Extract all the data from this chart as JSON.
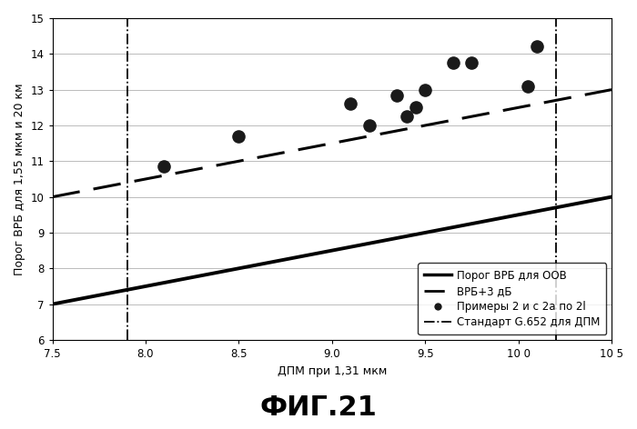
{
  "title": "ФИГ.21",
  "xlabel": "ДПМ при 1,31 мкм",
  "ylabel": "Порог ВРБ для 1,55 мкм и 20 км",
  "xlim": [
    7.5,
    10.5
  ],
  "ylim": [
    6,
    15
  ],
  "xticks": [
    7.5,
    8.0,
    8.5,
    9.0,
    9.5,
    10.0,
    10.5
  ],
  "xtick_labels": [
    "7.5",
    "8.0",
    "8.5",
    "9.0",
    "9.5",
    "10 0",
    "10 5"
  ],
  "yticks": [
    6,
    7,
    8,
    9,
    10,
    11,
    12,
    13,
    14,
    15
  ],
  "solid_line": {
    "x": [
      7.5,
      10.5
    ],
    "y": [
      7.0,
      10.0
    ]
  },
  "dashed_line": {
    "x": [
      7.5,
      10.5
    ],
    "y": [
      10.0,
      13.0
    ]
  },
  "vlines": [
    7.9,
    10.2
  ],
  "scatter_x": [
    8.1,
    8.5,
    9.1,
    9.2,
    9.35,
    9.4,
    9.45,
    9.5,
    9.65,
    9.75,
    10.05,
    10.1
  ],
  "scatter_y": [
    10.85,
    11.7,
    12.6,
    12.0,
    12.85,
    12.25,
    12.5,
    13.0,
    13.75,
    13.75,
    13.1,
    14.2
  ],
  "legend_labels": [
    "Порог ВРБ для ООВ",
    "ВРБ+3 дБ",
    "Примеры 2 и с 2а по 2l",
    "Стандарт G.652 для ДПМ"
  ],
  "figsize": [
    7.0,
    4.72
  ],
  "dpi": 100,
  "bg_color": "#ffffff",
  "line_color": "#000000",
  "scatter_color": "#1a1a1a",
  "title_fontsize": 22,
  "label_fontsize": 9,
  "tick_fontsize": 8.5,
  "legend_fontsize": 8.5
}
